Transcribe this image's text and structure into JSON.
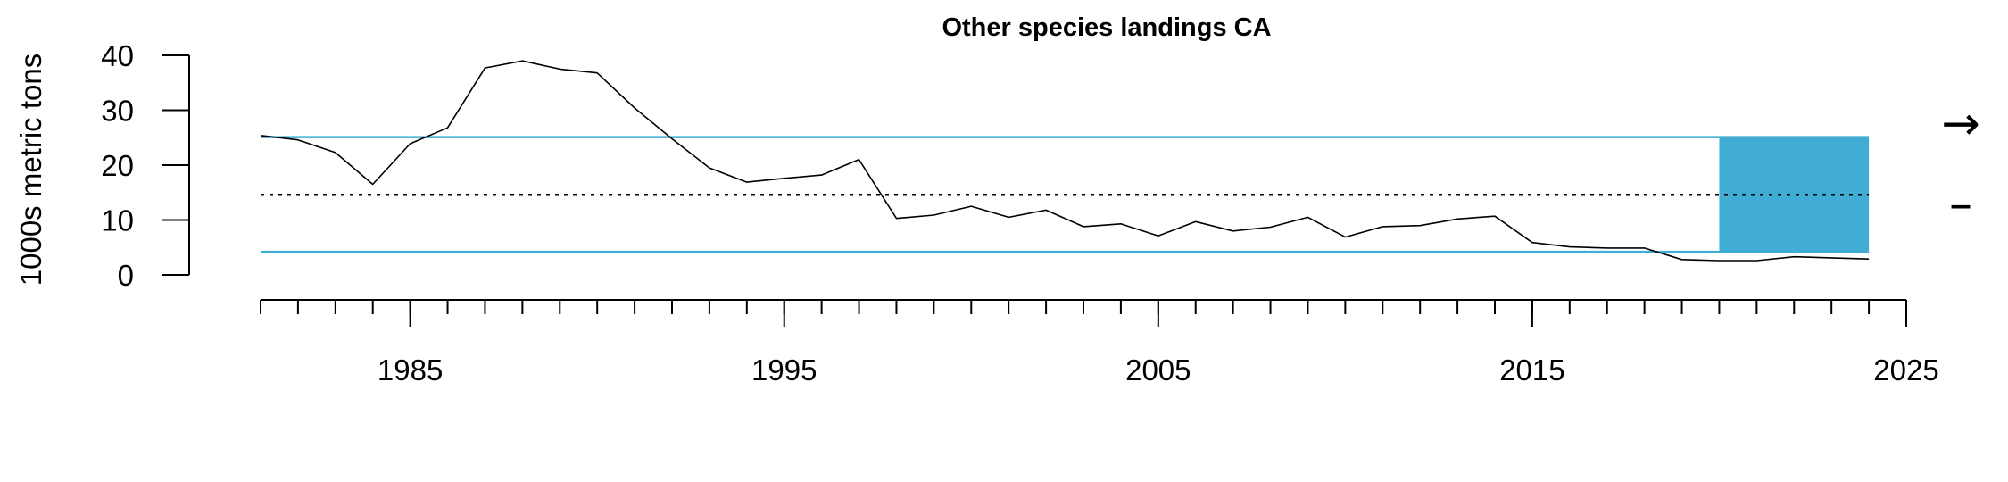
{
  "chart_data": {
    "type": "line",
    "title": "Other species landings CA",
    "xlabel": "",
    "ylabel": "1000s metric tons",
    "xlim": [
      1981,
      2025
    ],
    "ylim": [
      0,
      40
    ],
    "x_ticks_major": [
      1985,
      1995,
      2005,
      2015,
      2025
    ],
    "x_ticks_minor_years": [
      1981,
      1982,
      1983,
      1984,
      1985,
      1986,
      1987,
      1988,
      1989,
      1990,
      1991,
      1992,
      1993,
      1994,
      1995,
      1996,
      1997,
      1998,
      1999,
      2000,
      2001,
      2002,
      2003,
      2004,
      2005,
      2006,
      2007,
      2008,
      2009,
      2010,
      2011,
      2012,
      2013,
      2014,
      2015,
      2016,
      2017,
      2018,
      2019,
      2020,
      2021,
      2022,
      2023,
      2024
    ],
    "y_ticks": [
      0,
      10,
      20,
      30,
      40
    ],
    "series": [
      {
        "x": [
          1981,
          1982,
          1983,
          1984,
          1985,
          1986,
          1987,
          1988,
          1989,
          1990,
          1991,
          1992,
          1993,
          1994,
          1995,
          1996,
          1997,
          1998,
          1999,
          2000,
          2001,
          2002,
          2003,
          2004,
          2005,
          2006,
          2007,
          2008,
          2009,
          2010,
          2011,
          2012,
          2013,
          2014,
          2015,
          2016,
          2017,
          2018,
          2019,
          2020,
          2021,
          2022,
          2023,
          2024
        ],
        "values": [
          25.4,
          24.6,
          22.3,
          16.5,
          23.9,
          26.8,
          37.7,
          39.0,
          37.5,
          36.8,
          30.4,
          24.8,
          19.5,
          16.9,
          17.6,
          18.2,
          21.0,
          10.3,
          10.9,
          12.5,
          10.5,
          11.8,
          8.8,
          9.3,
          7.1,
          9.7,
          8.0,
          8.7,
          10.5,
          6.9,
          8.8,
          9.0,
          10.2,
          10.7,
          5.9,
          5.1,
          4.9,
          4.9,
          2.8,
          2.6,
          2.6,
          3.3,
          3.1,
          2.9
        ]
      }
    ],
    "mean": 14.6,
    "upper_sd": 25.1,
    "lower_sd": 4.2,
    "shaded_x_range": [
      2020,
      2024
    ],
    "colors": {
      "band": "#41add4",
      "line": "#000000",
      "mean": "#000000"
    },
    "trend_indicator": "right-arrow",
    "mean_indicator": "dash",
    "grid": false,
    "legend": "none"
  }
}
